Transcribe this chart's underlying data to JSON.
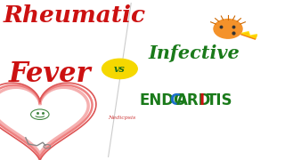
{
  "bg_color": "#ffffff",
  "title_left_line1": "Rheumatic",
  "title_left_line2": "Fever",
  "title_left_color": "#cc1111",
  "vs_text": "vs",
  "vs_bg_color": "#f5d800",
  "vs_text_color": "#1a6e1a",
  "title_right_line1": "Infective",
  "title_right_line1_color": "#1a7a1a",
  "endocarditis_parts": [
    {
      "text": "ENDO",
      "color": "#1a7a1a"
    },
    {
      "text": "C",
      "color": "#1a6ecc"
    },
    {
      "text": "ARD",
      "color": "#1a7a1a"
    },
    {
      "text": "I",
      "color": "#cc1111"
    },
    {
      "text": "TIS",
      "color": "#1a7a1a"
    }
  ],
  "watermark": "Nedicpsis",
  "watermark_color": "#cc3333",
  "line_color": "#cccccc"
}
